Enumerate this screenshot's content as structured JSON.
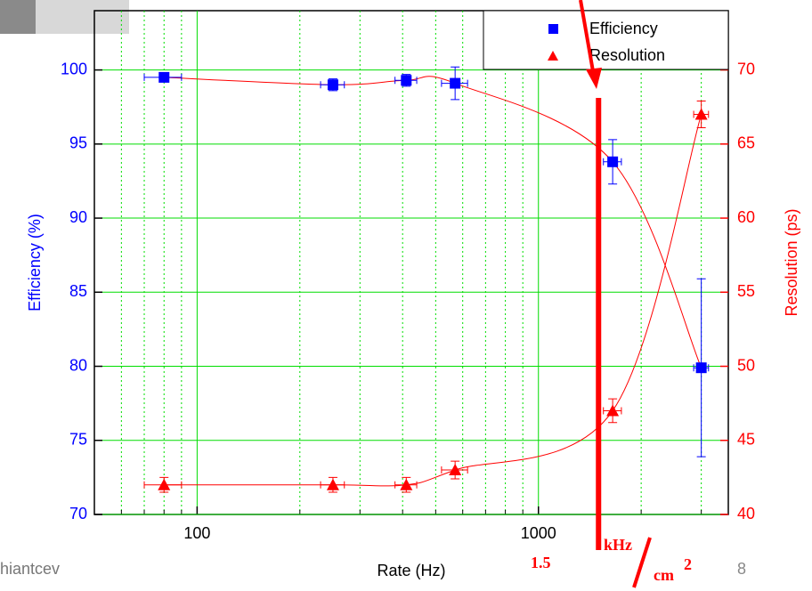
{
  "chart_data": {
    "type": "scatter",
    "x_label": "Rate (Hz)",
    "y_label": "Efficiency (%)",
    "y2_label": "Resolution (ps)",
    "x": [
      80,
      250,
      410,
      570,
      1650,
      3000
    ],
    "xerr": [
      10,
      20,
      30,
      50,
      100,
      150
    ],
    "xlog": true,
    "series": [
      {
        "name": "Efficiency",
        "color": "#0000ff",
        "marker": "square",
        "values": [
          99.5,
          99.0,
          99.3,
          99.1,
          93.8,
          79.9
        ],
        "errors": [
          0.3,
          0.4,
          0.4,
          1.1,
          1.5,
          6.0
        ]
      },
      {
        "name": "Resolution",
        "color": "#ff0000",
        "marker": "triangle",
        "axis": "y2",
        "values": [
          42,
          42,
          42,
          43,
          47,
          67
        ],
        "errors": [
          0.5,
          0.5,
          0.5,
          0.6,
          0.8,
          0.9
        ]
      }
    ],
    "xlim": [
      50,
      3600
    ],
    "xticks": [
      100,
      1000
    ],
    "xminorticks": [
      60,
      70,
      80,
      90,
      200,
      300,
      400,
      500,
      600,
      700,
      800,
      900,
      2000,
      3000
    ],
    "ylim": [
      70,
      104
    ],
    "yticks": [
      70,
      75,
      80,
      85,
      90,
      95,
      100
    ],
    "y2lim": [
      40,
      74
    ],
    "y2ticks": [
      40,
      45,
      50,
      55,
      60,
      65,
      70
    ],
    "grid": true,
    "legend": "upper right",
    "annotation": {
      "x": 1500,
      "number": "1.5",
      "numerator": "kHz",
      "denominator": "cm",
      "exponent": "2"
    }
  },
  "footer": {
    "author": "hiantcev",
    "page": "8"
  }
}
